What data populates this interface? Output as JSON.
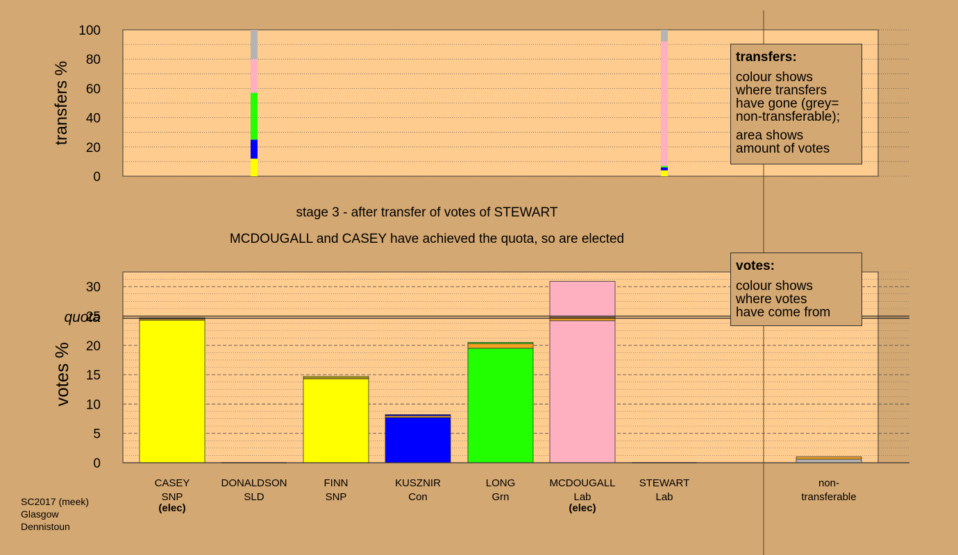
{
  "colors": {
    "background": "#d4a872",
    "plot_bg": "#ffcc8f",
    "SNP": "#ffff00",
    "SLD": "#f4a020",
    "Con": "#0000ff",
    "Grn": "#22ff00",
    "Lab": "#ffb0c0",
    "nontransferable": "#b4b4b4",
    "transfer_inflow": "#f4a020"
  },
  "stage_title": "stage 3 - after transfer of votes of STEWART",
  "stage_subtitle": "MCDOUGALL and CASEY have achieved the quota, so are elected",
  "legend_transfers": {
    "heading": "transfers:",
    "lines1": [
      "colour shows",
      "where transfers",
      "have gone (grey=",
      "non-transferable);"
    ],
    "lines2": [
      "area shows",
      "amount of votes"
    ]
  },
  "legend_votes": {
    "heading": "votes:",
    "lines": [
      "colour shows",
      "where votes",
      "have come from"
    ]
  },
  "footer": [
    "SC2017 (meek)",
    "Glasgow",
    "Dennistoun"
  ],
  "chart_data": [
    {
      "type": "bar",
      "name": "transfers",
      "ylabel": "transfers %",
      "ylim": [
        0,
        100
      ],
      "yticks": [
        0,
        20,
        40,
        60,
        80,
        100
      ],
      "stacks": [
        {
          "position": "DONALDSON",
          "segments": [
            {
              "color": "SNP",
              "value": 12
            },
            {
              "color": "Con",
              "value": 13
            },
            {
              "color": "Grn",
              "value": 32
            },
            {
              "color": "Lab",
              "value": 23
            },
            {
              "color": "nontransferable",
              "value": 20
            }
          ]
        },
        {
          "position": "STEWART",
          "segments": [
            {
              "color": "SNP",
              "value": 4
            },
            {
              "color": "Con",
              "value": 2
            },
            {
              "color": "Grn",
              "value": 1
            },
            {
              "color": "Lab",
              "value": 85
            },
            {
              "color": "nontransferable",
              "value": 8
            }
          ]
        }
      ]
    },
    {
      "type": "bar",
      "name": "votes",
      "ylabel": "votes %",
      "ylim": [
        0,
        32.5
      ],
      "yticks": [
        0,
        5,
        10,
        15,
        20,
        25,
        30
      ],
      "quota": 24.8,
      "quota_label": "quota",
      "candidates": [
        {
          "name": "CASEY",
          "party": "SNP",
          "elected": true,
          "elected_label": "(elec)",
          "base": 24.3,
          "inflow": 0.2,
          "prev": 0.2,
          "color": "SNP"
        },
        {
          "name": "DONALDSON",
          "party": "SLD",
          "elected": false,
          "elected_label": "",
          "base": 0,
          "inflow": 0,
          "prev": 0,
          "color": "SLD"
        },
        {
          "name": "FINN",
          "party": "SNP",
          "elected": false,
          "elected_label": "",
          "base": 14.3,
          "inflow": 0.2,
          "prev": 0.2,
          "color": "SNP"
        },
        {
          "name": "KUSZNIR",
          "party": "Con",
          "elected": false,
          "elected_label": "",
          "base": 7.7,
          "inflow": 0.3,
          "prev": 0.2,
          "color": "Con"
        },
        {
          "name": "LONG",
          "party": "Grn",
          "elected": false,
          "elected_label": "",
          "base": 19.5,
          "inflow": 0.8,
          "prev": 0.2,
          "color": "Grn"
        },
        {
          "name": "MCDOUGALL",
          "party": "Lab",
          "elected": true,
          "elected_label": "(elec)",
          "base": 24.2,
          "inflow": 0.6,
          "prev": 6.1,
          "color": "Lab"
        },
        {
          "name": "STEWART",
          "party": "Lab",
          "elected": false,
          "elected_label": "",
          "base": 0,
          "inflow": 0,
          "prev": 0,
          "color": "Lab"
        }
      ],
      "nontransferable": {
        "label_line1": "non-",
        "label_line2": "transferable",
        "base": 0.6,
        "inflow": 0.4,
        "color": "nontransferable"
      }
    }
  ]
}
